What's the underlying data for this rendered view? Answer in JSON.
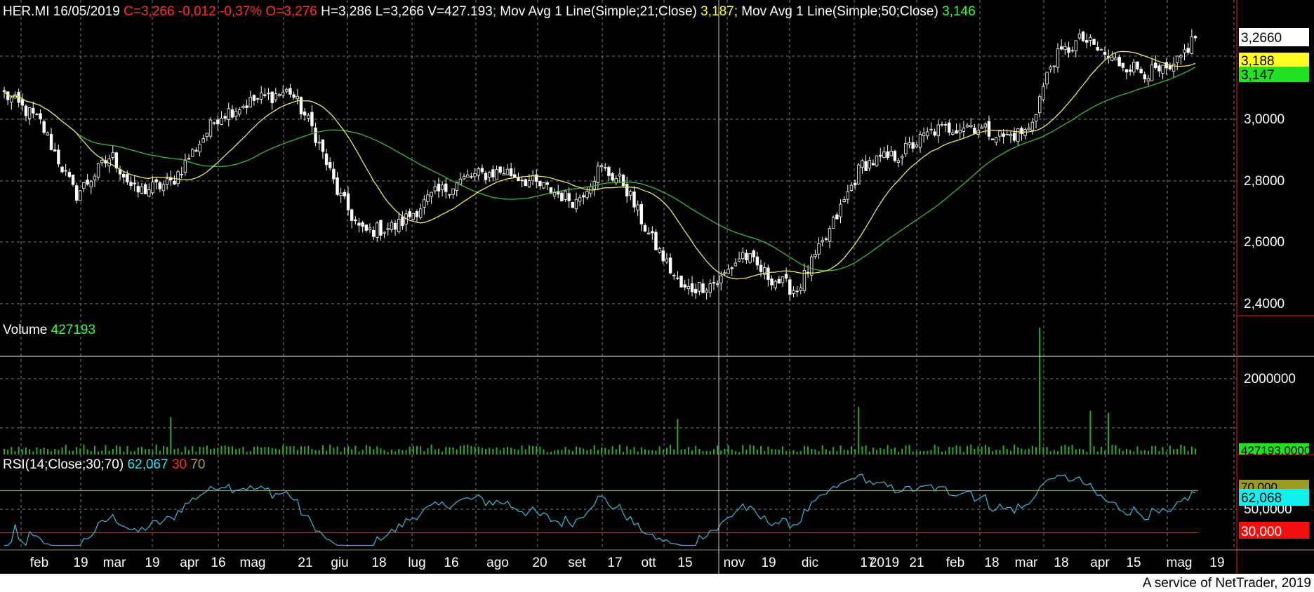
{
  "header": {
    "symbol_date": "HER.MI 16/05/2019",
    "ohlc": "C=3,266 -0,012 -0,37% O=3,276",
    "hlv": "H=3,286 L=3,266 V=427.193",
    "sep": ";",
    "ma1_label": "Mov Avg 1 Line(Simple;21;Close)",
    "ma1_value": "3,187",
    "ma2_label": "Mov Avg 1 Line(Simple;50;Close)",
    "ma2_value": "3,146"
  },
  "volume_panel": {
    "label": "Volume",
    "value": "427193"
  },
  "rsi_panel": {
    "label": "RSI(14;Close;30;70)",
    "value": "62,067",
    "low": "30",
    "high": "70"
  },
  "footer": {
    "credit": "A service of NetTrader, 2019"
  },
  "colors": {
    "background": "#000000",
    "grid": "#7a7a7a",
    "candle": "#ffffff",
    "ma21": "#e8e86a",
    "ma50": "#3cb83c",
    "volume_bar": "#2fa82f",
    "rsi_line": "#3fb8d8",
    "rsi_upper": "#9a9a3a",
    "rsi_lower": "#e02020",
    "axis_sep": "#c01010"
  },
  "chart_data": [
    {
      "type": "candlestick",
      "title": "HER.MI",
      "ylim": [
        2.36,
        3.33
      ],
      "y_ticks": [
        "3,0000",
        "2,8000",
        "2,6000",
        "2,4000"
      ],
      "last_price_tag": "3,2660",
      "ma21_tag": "3,188",
      "ma50_tag": "3,147",
      "x_labels": [
        "feb",
        "19",
        "mar",
        "19",
        "apr",
        "16",
        "mag",
        "21",
        "giu",
        "18",
        "lug",
        "16",
        "ago",
        "20",
        "set",
        "17",
        "ott",
        "15",
        "nov",
        "19",
        "dic",
        "17",
        "2019",
        "21",
        "feb",
        "18",
        "mar",
        "18",
        "apr",
        "15",
        "mag",
        "19"
      ],
      "anchors": [
        {
          "pos": 0.0,
          "price": 3.07
        },
        {
          "pos": 0.03,
          "price": 2.98
        },
        {
          "pos": 0.06,
          "price": 2.74
        },
        {
          "pos": 0.09,
          "price": 2.87
        },
        {
          "pos": 0.11,
          "price": 2.75
        },
        {
          "pos": 0.14,
          "price": 2.78
        },
        {
          "pos": 0.18,
          "price": 3.0
        },
        {
          "pos": 0.21,
          "price": 3.05
        },
        {
          "pos": 0.24,
          "price": 3.08
        },
        {
          "pos": 0.26,
          "price": 2.95
        },
        {
          "pos": 0.28,
          "price": 2.75
        },
        {
          "pos": 0.3,
          "price": 2.62
        },
        {
          "pos": 0.33,
          "price": 2.64
        },
        {
          "pos": 0.36,
          "price": 2.74
        },
        {
          "pos": 0.39,
          "price": 2.8
        },
        {
          "pos": 0.42,
          "price": 2.82
        },
        {
          "pos": 0.45,
          "price": 2.77
        },
        {
          "pos": 0.48,
          "price": 2.72
        },
        {
          "pos": 0.5,
          "price": 2.83
        },
        {
          "pos": 0.52,
          "price": 2.78
        },
        {
          "pos": 0.54,
          "price": 2.62
        },
        {
          "pos": 0.57,
          "price": 2.43
        },
        {
          "pos": 0.6,
          "price": 2.46
        },
        {
          "pos": 0.62,
          "price": 2.55
        },
        {
          "pos": 0.64,
          "price": 2.48
        },
        {
          "pos": 0.665,
          "price": 2.43
        },
        {
          "pos": 0.69,
          "price": 2.6
        },
        {
          "pos": 0.72,
          "price": 2.84
        },
        {
          "pos": 0.75,
          "price": 2.87
        },
        {
          "pos": 0.78,
          "price": 2.95
        },
        {
          "pos": 0.81,
          "price": 2.97
        },
        {
          "pos": 0.84,
          "price": 2.93
        },
        {
          "pos": 0.86,
          "price": 2.95
        },
        {
          "pos": 0.88,
          "price": 3.18
        },
        {
          "pos": 0.905,
          "price": 3.25
        },
        {
          "pos": 0.93,
          "price": 3.18
        },
        {
          "pos": 0.96,
          "price": 3.14
        },
        {
          "pos": 0.98,
          "price": 3.14
        },
        {
          "pos": 1.0,
          "price": 3.26
        }
      ]
    },
    {
      "type": "bar",
      "title": "Volume",
      "ylim": [
        0,
        3000000
      ],
      "y_ticks": [
        "2000000"
      ],
      "last_value_tag": "427193,0000",
      "spikes": [
        {
          "pos": 0.14,
          "value": 900000
        },
        {
          "pos": 0.565,
          "value": 850000
        },
        {
          "pos": 0.717,
          "value": 1150000
        },
        {
          "pos": 0.869,
          "value": 3050000
        },
        {
          "pos": 0.912,
          "value": 1050000
        },
        {
          "pos": 0.928,
          "value": 1000000
        }
      ]
    },
    {
      "type": "line",
      "title": "RSI(14;Close;30;70)",
      "ylim": [
        15,
        95
      ],
      "y_ticks": [
        "50,0000"
      ],
      "upper_tag": "70,000",
      "value_tag": "62,068",
      "lower_tag": "30,000",
      "bands": {
        "upper": 70,
        "lower": 30
      }
    }
  ]
}
